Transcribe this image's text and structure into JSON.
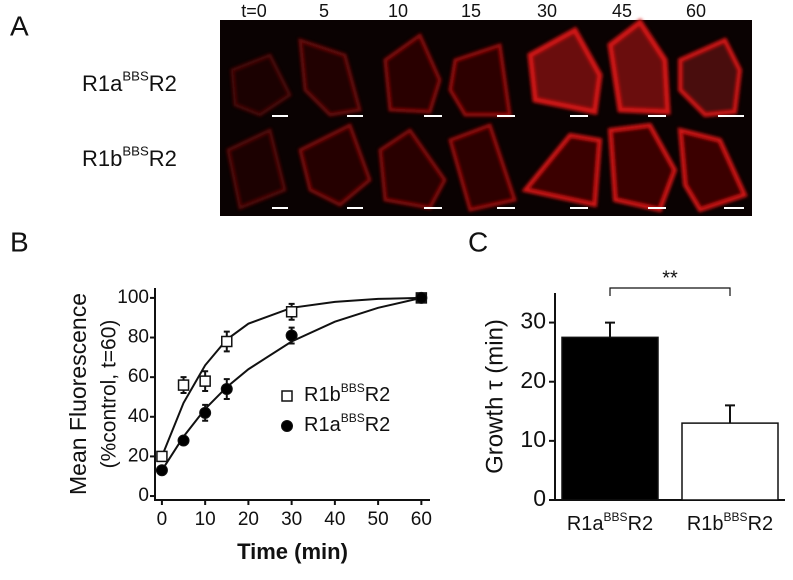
{
  "panel_a": {
    "label": "A",
    "times": [
      "t=0",
      "5",
      "10",
      "15",
      "30",
      "45",
      "60"
    ],
    "rows": [
      {
        "base": "R1a",
        "sup": "BBS",
        "tail": "R2"
      },
      {
        "base": "R1b",
        "sup": "BBS",
        "tail": "R2"
      }
    ]
  },
  "chart_data": [
    {
      "type": "scatter",
      "label": "B",
      "x_label": "Time (min)",
      "y_label": [
        "Mean Fluorescence",
        "(%control, t=60)"
      ],
      "xlim": [
        -1.6,
        62
      ],
      "ylim": [
        -2,
        105
      ],
      "xticks": [
        0,
        10,
        20,
        30,
        40,
        50,
        60
      ],
      "yticks": [
        0,
        20,
        40,
        60,
        80,
        100
      ],
      "fit_x": [
        0,
        5,
        10,
        15,
        20,
        30,
        40,
        50,
        60
      ],
      "series": [
        {
          "name": {
            "base": "R1b",
            "sup": "BBS",
            "tail": "R2"
          },
          "marker": "square",
          "color": "#ffffff",
          "x": [
            0,
            5,
            10,
            15,
            30,
            60
          ],
          "values": [
            20,
            56,
            58,
            78,
            93,
            100
          ],
          "errors": [
            2,
            4,
            5,
            5,
            4,
            2
          ],
          "fit_values": [
            20,
            47,
            66,
            79,
            87,
            95,
            98,
            99.5,
            100
          ]
        },
        {
          "name": {
            "base": "R1a",
            "sup": "BBS",
            "tail": "R2"
          },
          "marker": "circle",
          "color": "#000000",
          "x": [
            0,
            5,
            10,
            15,
            30,
            60
          ],
          "values": [
            13,
            28,
            42,
            54,
            81,
            100
          ],
          "errors": [
            2,
            2,
            4,
            5,
            4,
            2
          ],
          "fit_values": [
            13,
            30,
            44,
            55,
            64,
            78,
            88,
            95,
            100
          ]
        }
      ]
    },
    {
      "type": "bar",
      "label": "C",
      "y_label": "Growth τ (min)",
      "categories": [
        {
          "base": "R1a",
          "sup": "BBS",
          "tail": "R2"
        },
        {
          "base": "R1b",
          "sup": "BBS",
          "tail": "R2"
        }
      ],
      "values": [
        27.5,
        13
      ],
      "errors": [
        2.5,
        3
      ],
      "colors": [
        "#000000",
        "#ffffff"
      ],
      "ylim": [
        0,
        35
      ],
      "yticks": [
        0,
        10,
        20,
        30
      ],
      "annotation": "**"
    }
  ]
}
